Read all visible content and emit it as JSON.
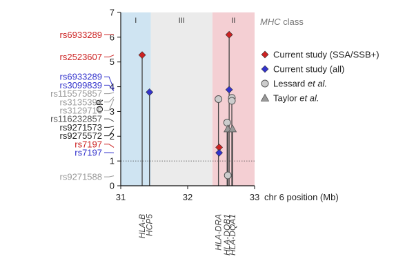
{
  "chart_data": {
    "type": "scatter",
    "xlabel": "chr 6 position (Mb)",
    "ylabel": "OR",
    "xlim": [
      31,
      33
    ],
    "ylim": [
      0,
      7
    ],
    "x_ticks": [
      31,
      32,
      33
    ],
    "y_ticks": [
      0,
      1,
      2,
      3,
      4,
      5,
      6,
      7
    ],
    "reference_line": {
      "y": 1,
      "style": "dotted"
    },
    "mhc_caption_prefix": "MHC",
    "mhc_caption_suffix": " class",
    "regions": [
      {
        "label": "I",
        "x0": 31.0,
        "x1": 31.45,
        "color": "#cfe4f2"
      },
      {
        "label": "III",
        "x0": 31.45,
        "x1": 32.37,
        "color": "#ebebeb"
      },
      {
        "label": "II",
        "x0": 32.37,
        "x1": 33.0,
        "color": "#f4cfd3"
      }
    ],
    "legend": [
      {
        "label": "Current study (SSA/SSB+)",
        "marker": "diamond",
        "color": "#cc2222",
        "italic_part": "",
        "suffix": ""
      },
      {
        "label": "Current study (all)",
        "marker": "diamond",
        "color": "#3333cc",
        "italic_part": "",
        "suffix": ""
      },
      {
        "label": "Lessard ",
        "marker": "circle",
        "color": "#cccccc",
        "italic_part": "et al.",
        "suffix": ""
      },
      {
        "label": "Taylor ",
        "marker": "triangle",
        "color": "#999999",
        "italic_part": "et al.",
        "suffix": ""
      }
    ],
    "series": [
      {
        "name": "Current study (SSA/SSB+)",
        "marker": "diamond",
        "color": "#cc2222",
        "points": [
          {
            "x": 31.32,
            "y": 5.28
          },
          {
            "x": 32.62,
            "y": 6.1
          },
          {
            "x": 32.47,
            "y": 1.55
          }
        ]
      },
      {
        "name": "Current study (all)",
        "marker": "diamond",
        "color": "#3333cc",
        "points": [
          {
            "x": 31.43,
            "y": 3.78
          },
          {
            "x": 32.62,
            "y": 3.88
          },
          {
            "x": 32.47,
            "y": 1.33
          }
        ]
      },
      {
        "name": "Lessard et al.",
        "marker": "circle",
        "color": "#cccccc",
        "points": [
          {
            "x": 32.46,
            "y": 3.5
          },
          {
            "x": 32.66,
            "y": 3.55
          },
          {
            "x": 32.66,
            "y": 3.43
          },
          {
            "x": 32.59,
            "y": 2.55
          },
          {
            "x": 32.6,
            "y": 0.42
          }
        ]
      },
      {
        "name": "Taylor et al.",
        "marker": "triangle",
        "color": "#999999",
        "points": [
          {
            "x": 32.6,
            "y": 2.3
          },
          {
            "x": 32.67,
            "y": 2.3
          }
        ]
      }
    ],
    "stems": [
      {
        "x": 31.32,
        "y": 5.28
      },
      {
        "x": 31.43,
        "y": 3.78
      },
      {
        "x": 32.46,
        "y": 3.5
      },
      {
        "x": 32.59,
        "y": 2.55
      },
      {
        "x": 32.6,
        "y": 2.3
      },
      {
        "x": 32.62,
        "y": 6.1
      },
      {
        "x": 32.66,
        "y": 3.55
      },
      {
        "x": 32.67,
        "y": 2.3
      }
    ],
    "snp_labels": [
      {
        "text": "rs6933289",
        "color": "#cc2222",
        "y": 6.1,
        "target_y": 6.1
      },
      {
        "text": "rs2523607",
        "color": "#cc2222",
        "y": 5.2,
        "target_y": 5.28
      },
      {
        "text": "rs6933289",
        "color": "#3333cc",
        "y": 4.4,
        "target_y": 3.9
      },
      {
        "text": "rs3099839",
        "color": "#3333cc",
        "y": 4.06,
        "target_y": 3.82
      },
      {
        "text": "rs115575857",
        "color": "#999999",
        "y": 3.72,
        "target_y": 3.76
      },
      {
        "text": "rs3135394",
        "color": "#999999",
        "y": 3.38,
        "target_y": 3.58
      },
      {
        "text": "rs3129716",
        "color": "#999999",
        "y": 3.04,
        "target_y": 3.5
      },
      {
        "text": "rs116232857",
        "color": "#555555",
        "y": 2.7,
        "target_y": 2.6
      },
      {
        "text": "rs9271573",
        "color": "#222222",
        "y": 2.36,
        "target_y": 2.4
      },
      {
        "text": "rs9275572",
        "color": "#222222",
        "y": 2.02,
        "target_y": 2.3
      },
      {
        "text": "rs7197",
        "color": "#cc2222",
        "y": 1.68,
        "target_y": 1.55
      },
      {
        "text": "rs7197",
        "color": "#3333cc",
        "y": 1.34,
        "target_y": 1.33
      },
      {
        "text": "rs9271588",
        "color": "#999999",
        "y": 0.36,
        "target_y": 0.4
      }
    ],
    "genes": [
      {
        "text": "HLA-B",
        "x": 31.32
      },
      {
        "text": "HCP5",
        "x": 31.43
      },
      {
        "text": "HLA-DRA",
        "x": 32.46
      },
      {
        "text": "HLA-DQB1",
        "x": 32.59
      },
      {
        "text": "HLA-DQA1",
        "x": 32.67
      }
    ]
  }
}
